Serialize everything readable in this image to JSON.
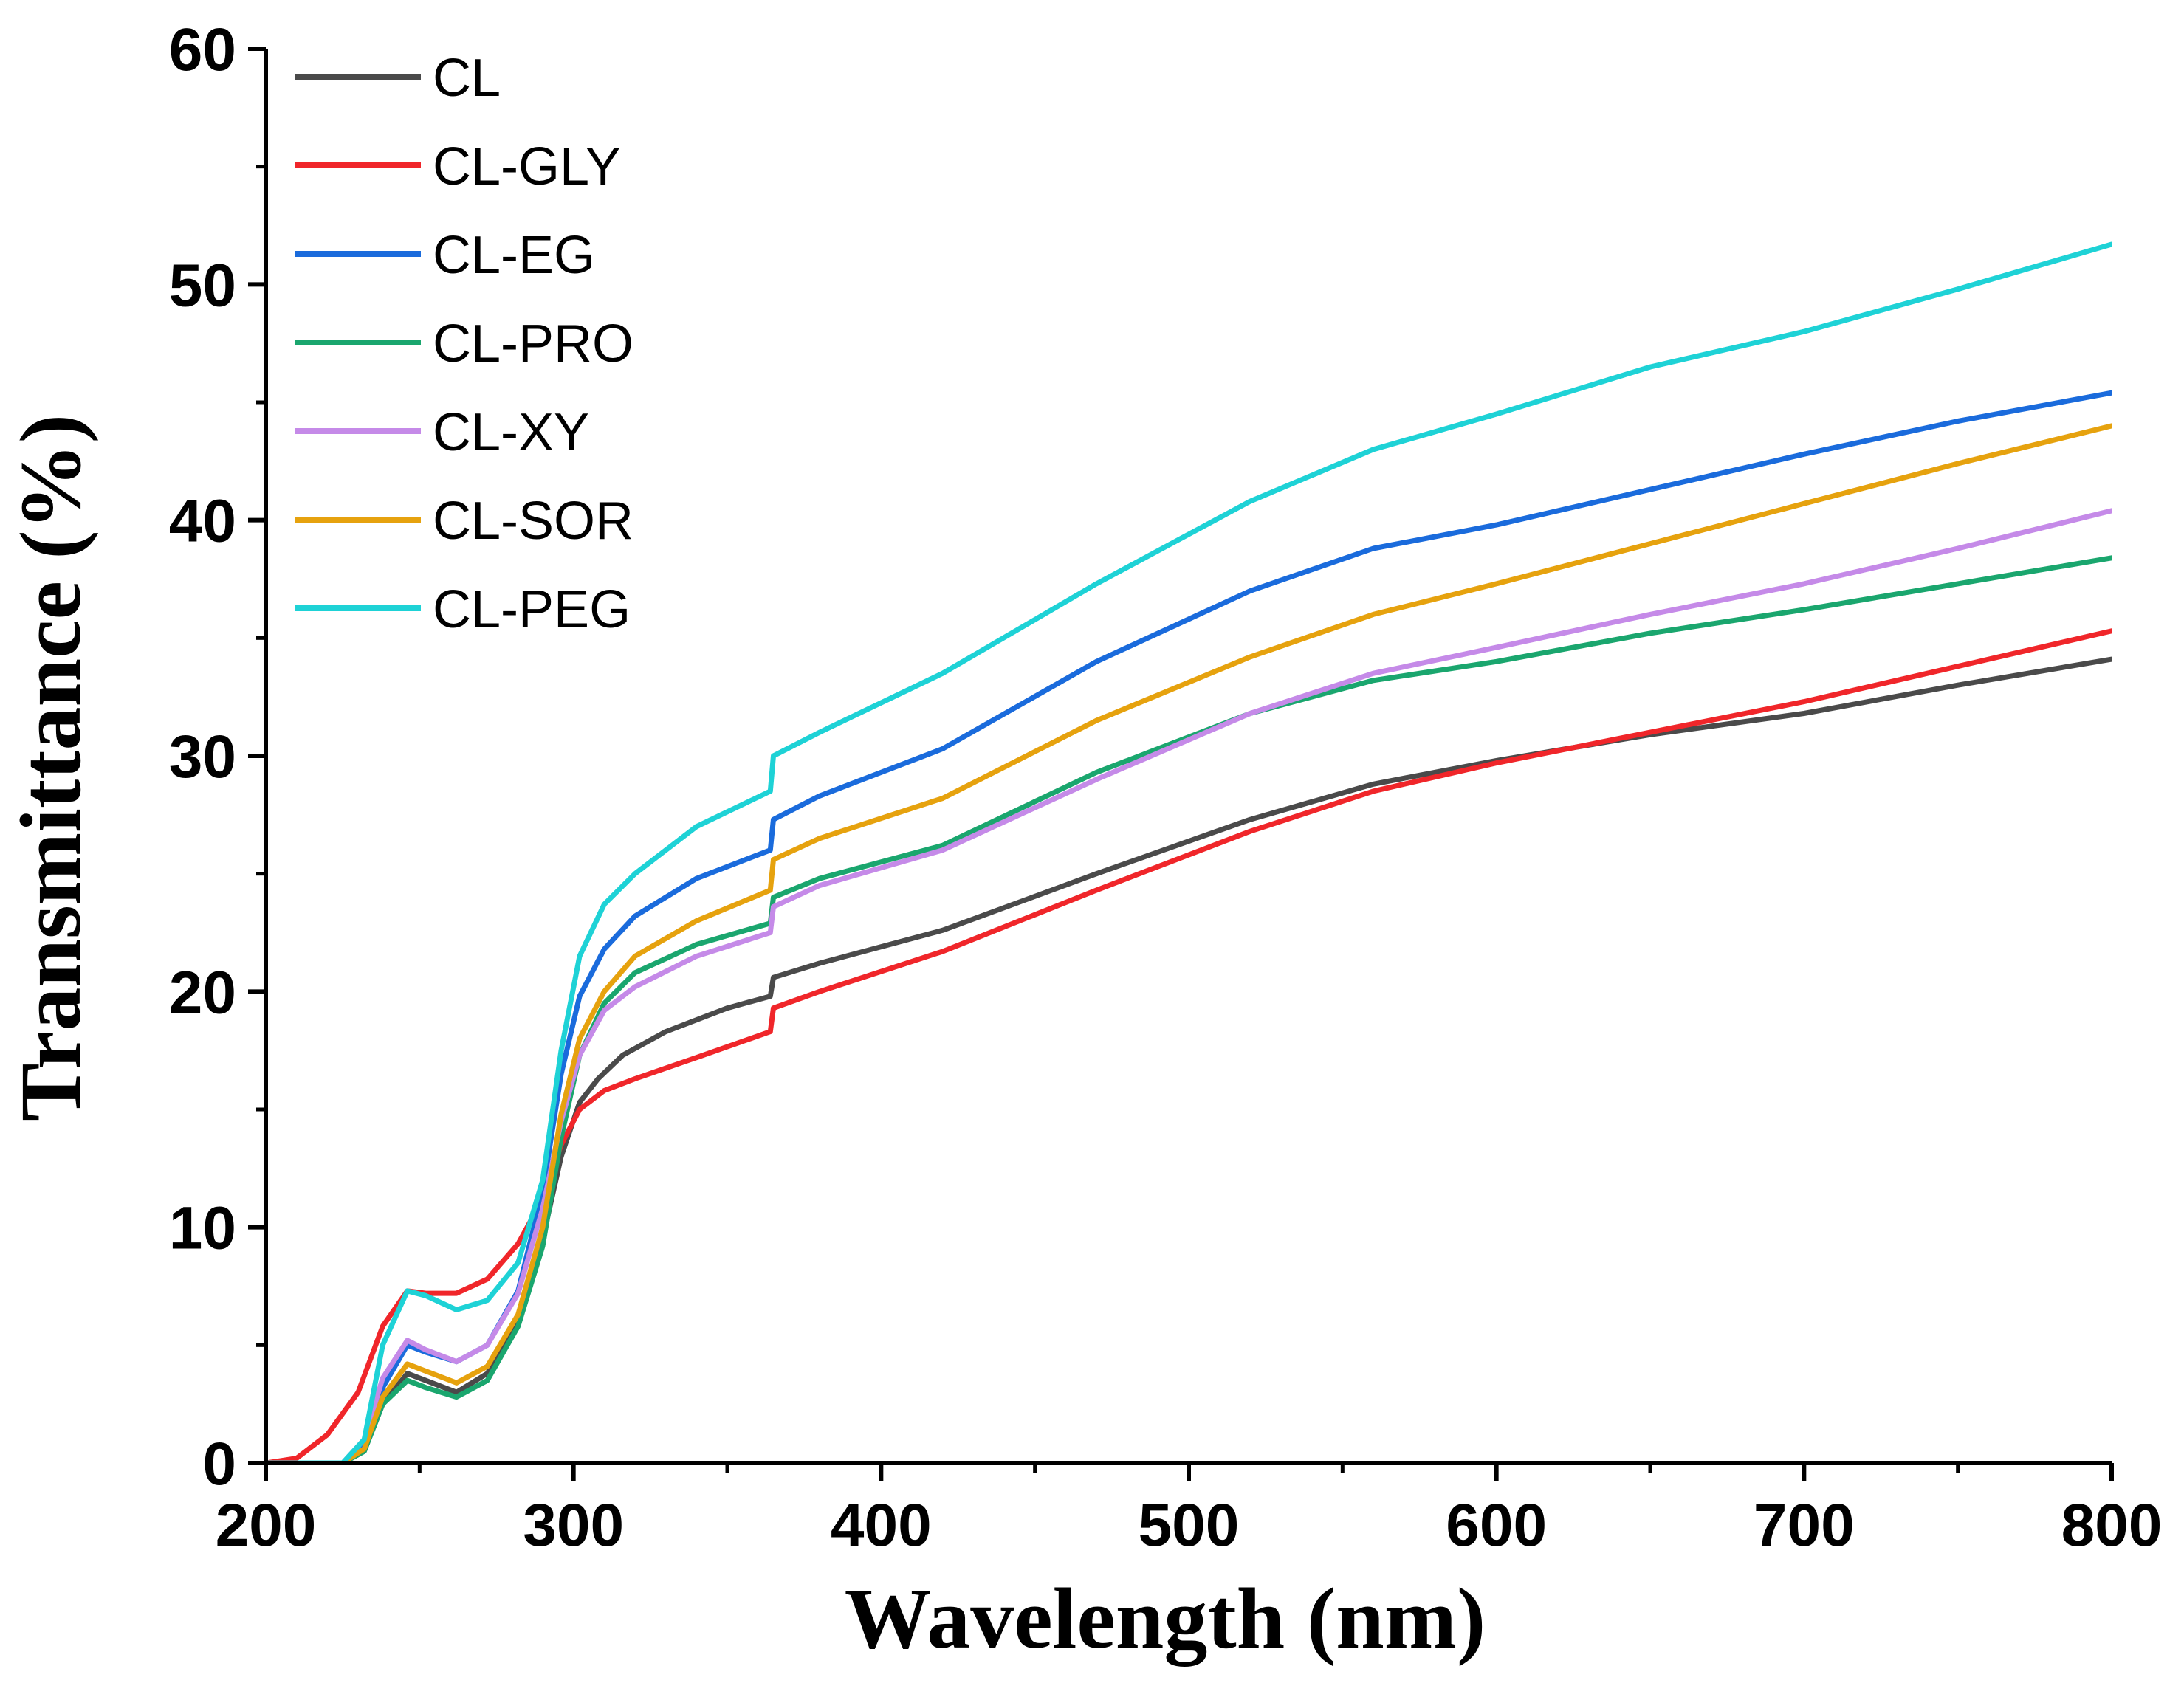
{
  "chart_data": {
    "type": "line",
    "title": "",
    "xlabel": "Wavelength (nm)",
    "ylabel": "Transmittance (%)",
    "xlim": [
      200,
      800
    ],
    "ylim": [
      0,
      60
    ],
    "xticks": [
      200,
      300,
      400,
      500,
      600,
      700,
      800
    ],
    "yticks": [
      0,
      10,
      20,
      30,
      40,
      50,
      60
    ],
    "grid": false,
    "legend_position": "top-left",
    "series": [
      {
        "name": "CL",
        "color": "#4a4a4a",
        "x": [
          200,
          215,
          225,
          232,
          238,
          246,
          252,
          262,
          272,
          282,
          290,
          296,
          302,
          308,
          316,
          330,
          350,
          364,
          365,
          380,
          420,
          470,
          520,
          560,
          600,
          650,
          700,
          750,
          800
        ],
        "y": [
          0,
          0,
          0,
          0.5,
          2.5,
          3.8,
          3.5,
          3.0,
          3.8,
          6.0,
          9.5,
          13.0,
          15.3,
          16.3,
          17.3,
          18.3,
          19.3,
          19.8,
          20.6,
          21.2,
          22.6,
          25.0,
          27.3,
          28.8,
          29.8,
          30.9,
          31.8,
          33.0,
          34.1
        ]
      },
      {
        "name": "CL-GLY",
        "color": "#f0262a",
        "x": [
          200,
          210,
          220,
          230,
          238,
          246,
          252,
          262,
          272,
          282,
          290,
          296,
          302,
          310,
          320,
          340,
          364,
          365,
          380,
          420,
          470,
          520,
          560,
          600,
          650,
          700,
          750,
          800
        ],
        "y": [
          0,
          0.2,
          1.2,
          3.0,
          5.8,
          7.3,
          7.2,
          7.2,
          7.8,
          9.3,
          11.2,
          13.5,
          15.0,
          15.8,
          16.3,
          17.2,
          18.3,
          19.3,
          20.0,
          21.7,
          24.3,
          26.8,
          28.5,
          29.7,
          31.0,
          32.3,
          33.8,
          35.3
        ]
      },
      {
        "name": "CL-EG",
        "color": "#1a6bdc",
        "x": [
          200,
          215,
          225,
          232,
          238,
          246,
          252,
          262,
          272,
          282,
          290,
          296,
          302,
          310,
          320,
          340,
          364,
          365,
          380,
          420,
          470,
          520,
          560,
          600,
          650,
          700,
          750,
          800
        ],
        "y": [
          0,
          0,
          0,
          0.8,
          3.2,
          5.0,
          4.7,
          4.3,
          5.0,
          7.3,
          11.5,
          16.5,
          19.8,
          21.8,
          23.2,
          24.8,
          26.0,
          27.3,
          28.3,
          30.3,
          34.0,
          37.0,
          38.8,
          39.8,
          41.3,
          42.8,
          44.2,
          45.4
        ]
      },
      {
        "name": "CL-PRO",
        "color": "#1aa66e",
        "x": [
          200,
          215,
          225,
          232,
          238,
          246,
          252,
          262,
          272,
          282,
          290,
          296,
          302,
          310,
          320,
          340,
          364,
          365,
          380,
          420,
          470,
          520,
          560,
          600,
          650,
          700,
          750,
          800
        ],
        "y": [
          0,
          0,
          0,
          0.5,
          2.5,
          3.5,
          3.2,
          2.8,
          3.5,
          5.8,
          9.2,
          13.8,
          17.3,
          19.5,
          20.8,
          22.0,
          22.9,
          24.0,
          24.8,
          26.2,
          29.3,
          31.8,
          33.2,
          34.0,
          35.2,
          36.2,
          37.3,
          38.4
        ]
      },
      {
        "name": "CL-XY",
        "color": "#c58ae8",
        "x": [
          200,
          215,
          225,
          232,
          238,
          246,
          252,
          262,
          272,
          282,
          290,
          296,
          302,
          310,
          320,
          340,
          364,
          365,
          380,
          420,
          470,
          520,
          560,
          600,
          650,
          700,
          750,
          800
        ],
        "y": [
          0,
          0,
          0,
          1.0,
          3.6,
          5.2,
          4.8,
          4.3,
          5.0,
          7.2,
          10.8,
          14.5,
          17.3,
          19.2,
          20.2,
          21.5,
          22.5,
          23.6,
          24.5,
          26.0,
          29.0,
          31.8,
          33.5,
          34.6,
          36.0,
          37.3,
          38.8,
          40.4
        ]
      },
      {
        "name": "CL-SOR",
        "color": "#e6a20e",
        "x": [
          200,
          215,
          225,
          232,
          238,
          246,
          252,
          262,
          272,
          282,
          290,
          296,
          302,
          310,
          320,
          340,
          364,
          365,
          380,
          420,
          470,
          520,
          560,
          600,
          650,
          700,
          750,
          800
        ],
        "y": [
          0,
          0,
          0,
          0.6,
          2.8,
          4.2,
          3.9,
          3.4,
          4.1,
          6.3,
          10.0,
          14.8,
          18.0,
          20.0,
          21.5,
          23.0,
          24.3,
          25.6,
          26.5,
          28.2,
          31.5,
          34.2,
          36.0,
          37.3,
          39.0,
          40.7,
          42.4,
          44.0
        ]
      },
      {
        "name": "CL-PEG",
        "color": "#1ed2d6",
        "x": [
          200,
          215,
          225,
          232,
          238,
          246,
          252,
          262,
          272,
          282,
          290,
          296,
          302,
          310,
          320,
          340,
          364,
          365,
          380,
          420,
          470,
          520,
          560,
          600,
          650,
          700,
          750,
          800
        ],
        "y": [
          0,
          0,
          0,
          1.0,
          5.0,
          7.3,
          7.1,
          6.5,
          6.9,
          8.5,
          12.0,
          17.5,
          21.5,
          23.7,
          25.0,
          27.0,
          28.5,
          30.0,
          31.0,
          33.5,
          37.3,
          40.8,
          43.0,
          44.5,
          46.5,
          48.0,
          49.8,
          51.7
        ]
      }
    ]
  }
}
